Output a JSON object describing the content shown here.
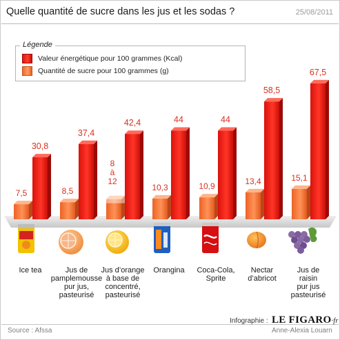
{
  "header": {
    "title": "Quelle quantité de sucre dans les jus et les sodas ?",
    "date": "25/08/2011"
  },
  "legend": {
    "title": "Légende",
    "items": [
      {
        "label": "Valeur énergétique pour 100 grammes (Kcal)",
        "color": "#e8150e"
      },
      {
        "label": "Quantité de sucre pour 100 grammes (g)",
        "color": "#f47a3a"
      }
    ]
  },
  "chart_data": {
    "type": "bar",
    "categories": [
      "Ice tea",
      "Jus de pamplemousse pur jus, pasteurisé",
      "Jus d'orange à base de concentré, pasteurisé",
      "Orangina",
      "Coca-Cola, Sprite",
      "Nectar d'abricot",
      "Jus de raisin pur jus pasteurisé"
    ],
    "category_lines": [
      [
        "Ice tea"
      ],
      [
        "Jus de",
        "pamplemousse",
        "pur jus,",
        "pasteurisé"
      ],
      [
        "Jus d’orange",
        "à base de",
        "concentré,",
        "pasteurisé"
      ],
      [
        "Orangina"
      ],
      [
        "Coca-Cola,",
        "Sprite"
      ],
      [
        "Nectar",
        "d’abricot"
      ],
      [
        "Jus de",
        "raisin",
        "pur jus",
        "pasteurisé"
      ]
    ],
    "series": [
      {
        "name": "Quantité de sucre pour 100 grammes (g)",
        "values": [
          7.5,
          8.5,
          10,
          10.3,
          10.9,
          13.4,
          15.1
        ],
        "labels": [
          "7,5",
          "8,5",
          "8 à 12",
          "10,3",
          "10,9",
          "13,4",
          "15,1"
        ],
        "color": "#f47a3a"
      },
      {
        "name": "Valeur énergétique pour 100 grammes (Kcal)",
        "values": [
          30.8,
          37.4,
          42.4,
          44,
          44,
          58.5,
          67.5
        ],
        "labels": [
          "30,8",
          "37,4",
          "42,4",
          "44",
          "44",
          "58,5",
          "67,5"
        ],
        "color": "#e8150e"
      }
    ],
    "sugar_range": [
      8,
      12
    ],
    "icons": [
      "ice-tea-can-icon",
      "grapefruit-icon",
      "orange-icon",
      "orangina-can-icon",
      "coca-cola-can-icon",
      "apricot-icon",
      "grapes-icon"
    ]
  },
  "footer": {
    "source": "Source : Afssa",
    "infographie": "Infographie :",
    "logo": "LE FIGARO",
    "logo_suffix": "·fr",
    "author": "Anne-Alexia Louarn"
  }
}
